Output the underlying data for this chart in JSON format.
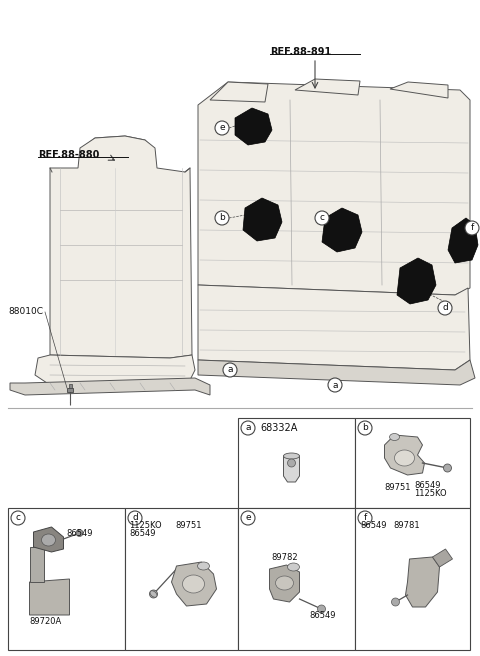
{
  "bg_color": "#ffffff",
  "fig_width": 4.8,
  "fig_height": 6.56,
  "dpi": 100,
  "ref_88_880": "REF.88-880",
  "ref_88_891": "REF.88-891",
  "label_88010C": "88010C",
  "part_a_code": "68332A",
  "part_b_1": "89751",
  "part_b_2": "86549",
  "part_b_3": "1125KO",
  "part_c_1": "86549",
  "part_c_2": "89720A",
  "part_d_1": "1125KO",
  "part_d_2": "86549",
  "part_d_3": "89751",
  "part_e_1": "89782",
  "part_e_2": "86549",
  "part_f_1": "86549",
  "part_f_2": "89781",
  "lc": "#444444",
  "tc": "#111111",
  "sc": "#888888"
}
